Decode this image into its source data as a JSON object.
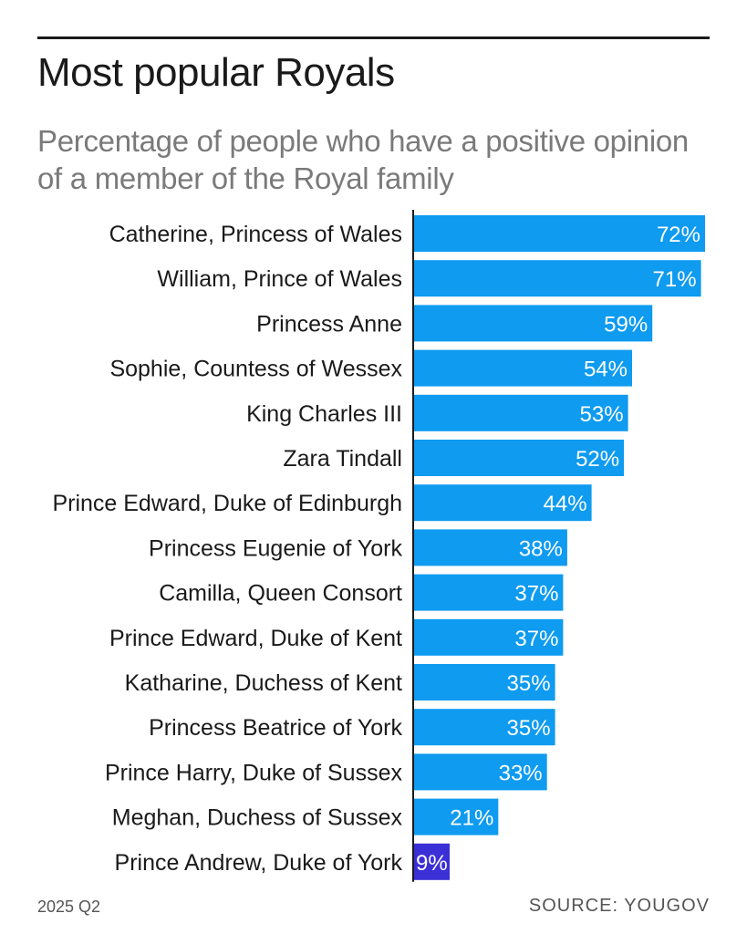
{
  "title": "Most popular Royals",
  "subtitle": "Percentage of people who have a positive opinion of a member of the Royal family",
  "footer": {
    "date": "2025 Q2",
    "source": "SOURCE: YOUGOV"
  },
  "colors": {
    "bar": "#0e9bf0",
    "bar_highlight": "#3b2fd6",
    "axis": "#1a1a1a",
    "label": "#1a1a1a",
    "value_label": "#ffffff"
  },
  "chart_data": {
    "type": "bar",
    "orientation": "horizontal",
    "categories": [
      "Catherine, Princess of Wales",
      "William, Prince of Wales",
      "Princess Anne",
      "Sophie, Countess of Wessex",
      "King Charles III",
      "Zara Tindall",
      "Prince Edward, Duke of Edinburgh",
      "Princess Eugenie of York",
      "Camilla, Queen Consort",
      "Prince Edward, Duke of Kent",
      "Katharine, Duchess of Kent",
      "Princess Beatrice of York",
      "Prince Harry, Duke of Sussex",
      "Meghan, Duchess of Sussex",
      "Prince Andrew, Duke of York"
    ],
    "values": [
      72,
      71,
      59,
      54,
      53,
      52,
      44,
      38,
      37,
      37,
      35,
      35,
      33,
      21,
      9
    ],
    "value_labels": [
      "72%",
      "71%",
      "59%",
      "54%",
      "53%",
      "52%",
      "44%",
      "38%",
      "37%",
      "37%",
      "35%",
      "35%",
      "33%",
      "21%",
      "9%"
    ],
    "highlighted_category": "Prince Andrew, Duke of York",
    "xlim": [
      0,
      72
    ],
    "grid": false,
    "legend": "none"
  }
}
